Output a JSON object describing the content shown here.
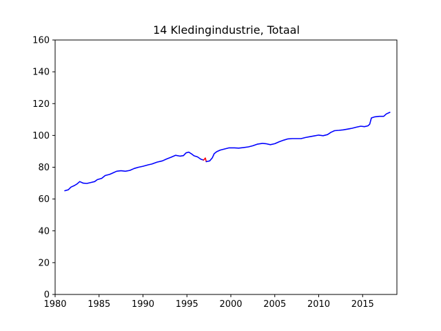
{
  "chart_data": {
    "type": "line",
    "title": "14 Kledingindustrie, Totaal",
    "xlabel": "",
    "ylabel": "",
    "xlim": [
      1980,
      2018.9
    ],
    "ylim": [
      0,
      160
    ],
    "xticks": [
      1980,
      1985,
      1990,
      1995,
      2000,
      2005,
      2010,
      2015
    ],
    "yticks": [
      0,
      20,
      40,
      60,
      80,
      100,
      120,
      140,
      160
    ],
    "grid": false,
    "series": [
      {
        "color": "#0000ff",
        "points": [
          [
            1981.1,
            65.2
          ],
          [
            1981.5,
            65.8
          ],
          [
            1981.8,
            67.5
          ],
          [
            1982.2,
            68.5
          ],
          [
            1982.5,
            69.5
          ],
          [
            1982.8,
            71.0
          ],
          [
            1983.2,
            70.0
          ],
          [
            1983.6,
            69.8
          ],
          [
            1984.0,
            70.3
          ],
          [
            1984.5,
            71.0
          ],
          [
            1984.8,
            72.2
          ],
          [
            1985.3,
            73.0
          ],
          [
            1985.7,
            74.8
          ],
          [
            1986.2,
            75.5
          ],
          [
            1986.6,
            76.5
          ],
          [
            1987.0,
            77.5
          ],
          [
            1987.5,
            77.8
          ],
          [
            1988.0,
            77.5
          ],
          [
            1988.5,
            78.0
          ],
          [
            1989.0,
            79.2
          ],
          [
            1989.5,
            80.0
          ],
          [
            1990.0,
            80.6
          ],
          [
            1990.6,
            81.5
          ],
          [
            1991.0,
            82.0
          ],
          [
            1991.6,
            83.2
          ],
          [
            1992.2,
            84.0
          ],
          [
            1992.7,
            85.2
          ],
          [
            1993.2,
            86.3
          ],
          [
            1993.7,
            87.5
          ],
          [
            1994.2,
            87.0
          ],
          [
            1994.6,
            87.3
          ],
          [
            1994.9,
            89.0
          ],
          [
            1995.2,
            89.5
          ],
          [
            1995.5,
            88.5
          ],
          [
            1995.8,
            87.2
          ],
          [
            1996.2,
            86.5
          ],
          [
            1996.6,
            85.0
          ],
          [
            1996.9,
            84.5
          ]
        ]
      },
      {
        "color": "#ff0000",
        "points": [
          [
            1996.9,
            84.5
          ],
          [
            1997.1,
            85.8
          ],
          [
            1997.2,
            83.5
          ]
        ]
      },
      {
        "color": "#0000ff",
        "points": [
          [
            1997.2,
            83.5
          ],
          [
            1997.6,
            84.0
          ],
          [
            1997.9,
            86.0
          ],
          [
            1998.1,
            88.5
          ],
          [
            1998.4,
            89.8
          ],
          [
            1998.8,
            90.8
          ],
          [
            1999.3,
            91.5
          ],
          [
            1999.8,
            92.2
          ],
          [
            2000.4,
            92.2
          ],
          [
            2000.9,
            92.0
          ],
          [
            2001.4,
            92.3
          ],
          [
            2002.0,
            92.8
          ],
          [
            2002.5,
            93.5
          ],
          [
            2003.0,
            94.5
          ],
          [
            2003.6,
            95.0
          ],
          [
            2004.0,
            94.8
          ],
          [
            2004.5,
            94.2
          ],
          [
            2005.0,
            94.8
          ],
          [
            2005.5,
            96.0
          ],
          [
            2006.0,
            97.0
          ],
          [
            2006.5,
            97.8
          ],
          [
            2007.0,
            98.0
          ],
          [
            2007.6,
            98.0
          ],
          [
            2008.0,
            98.0
          ],
          [
            2008.5,
            98.7
          ],
          [
            2009.0,
            99.2
          ],
          [
            2009.5,
            99.7
          ],
          [
            2010.0,
            100.2
          ],
          [
            2010.5,
            99.8
          ],
          [
            2011.0,
            100.5
          ],
          [
            2011.4,
            102.0
          ],
          [
            2011.8,
            103.0
          ],
          [
            2012.3,
            103.2
          ],
          [
            2012.8,
            103.5
          ],
          [
            2013.3,
            104.0
          ],
          [
            2013.8,
            104.5
          ],
          [
            2014.3,
            105.2
          ],
          [
            2014.8,
            105.8
          ],
          [
            2015.2,
            105.5
          ],
          [
            2015.6,
            106.0
          ],
          [
            2015.8,
            107.0
          ],
          [
            2016.0,
            111.0
          ],
          [
            2016.4,
            111.7
          ],
          [
            2016.9,
            112.0
          ],
          [
            2017.4,
            112.0
          ],
          [
            2017.7,
            113.5
          ],
          [
            2018.1,
            114.5
          ]
        ]
      }
    ]
  }
}
